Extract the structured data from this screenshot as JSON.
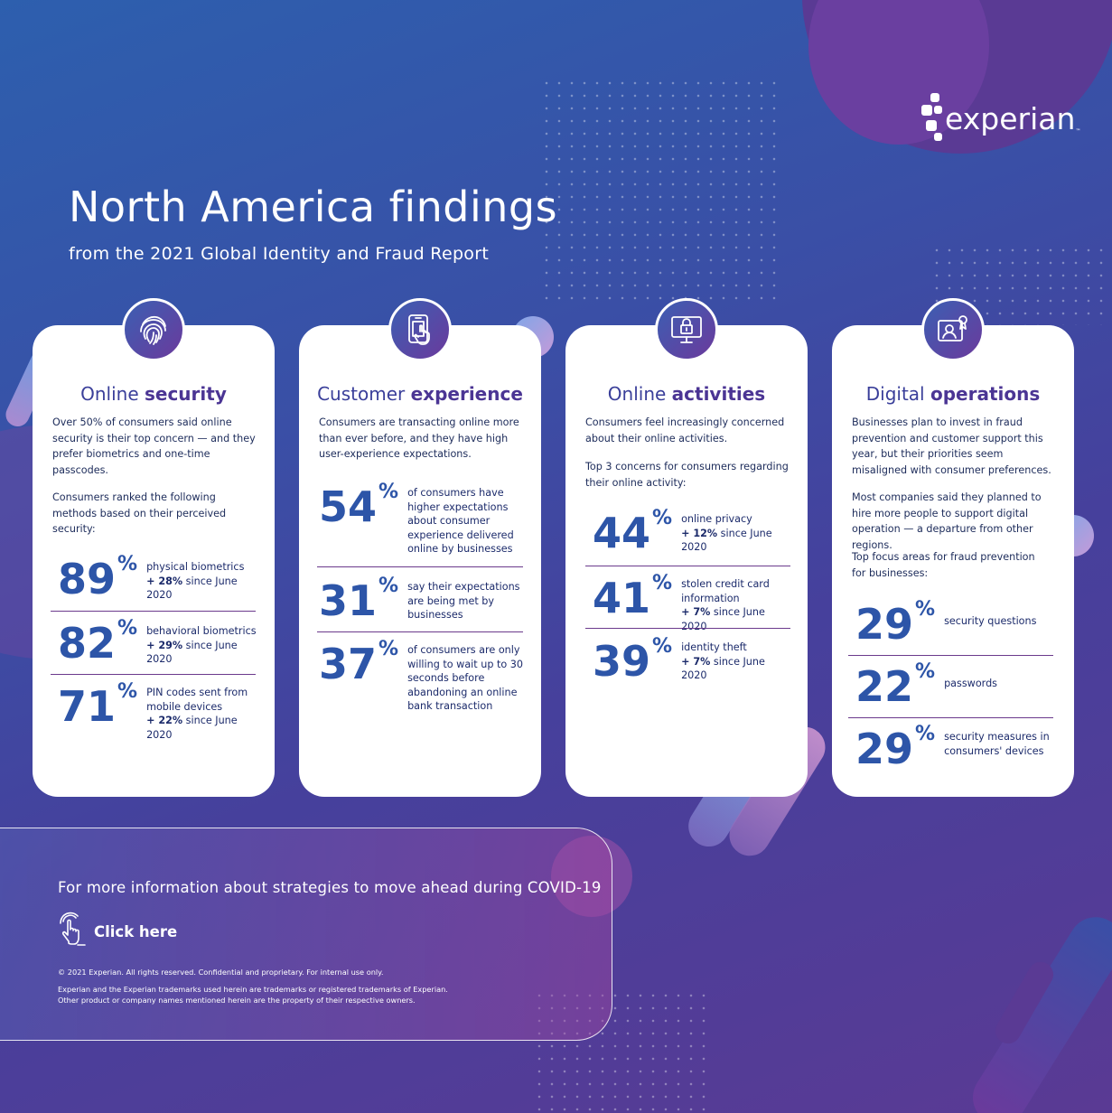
{
  "brand": {
    "name": "experian",
    "tm": "™"
  },
  "header": {
    "title": "North America findings",
    "subtitle": "from the 2021 Global Identity and Fraud Report"
  },
  "cards": [
    {
      "icon": "fingerprint-icon",
      "title_plain": "Online ",
      "title_bold": "security",
      "text1": "Over 50% of consumers said online security is their top concern — and they prefer biometrics and one-time passcodes.",
      "text2": "Consumers ranked the following methods based on their perceived security:",
      "stats": [
        {
          "num": "89",
          "pct": "%",
          "desc": "physical biometrics",
          "change": "+ 28%",
          "since": " since June 2020"
        },
        {
          "num": "82",
          "pct": "%",
          "desc": "behavioral biometrics",
          "change": "+ 29%",
          "since": " since June 2020"
        },
        {
          "num": "71",
          "pct": "%",
          "desc": "PIN codes sent from mobile devices",
          "change": "+ 22%",
          "since": " since June 2020"
        }
      ]
    },
    {
      "icon": "tablet-touch-icon",
      "title_plain": "Customer ",
      "title_bold": "experience",
      "text1": "Consumers are transacting online more than ever before, and they have high user-experience expectations.",
      "stats": [
        {
          "num": "54",
          "pct": "%",
          "desc": "of consumers have higher expectations about consumer experience delivered online by businesses"
        },
        {
          "num": "31",
          "pct": "%",
          "desc": "say their expectations are being met by businesses"
        },
        {
          "num": "37",
          "pct": "%",
          "desc": "of consumers are only willing to wait up to 30 seconds before abandoning an online bank transaction"
        }
      ]
    },
    {
      "icon": "monitor-lock-icon",
      "title_plain": "Online ",
      "title_bold": "activities",
      "text1": "Consumers feel increasingly concerned about their online activities.",
      "text2": "Top 3 concerns for consumers regarding their online activity:",
      "stats": [
        {
          "num": "44",
          "pct": "%",
          "desc": "online privacy",
          "change": "+ 12%",
          "since": " since June 2020"
        },
        {
          "num": "41",
          "pct": "%",
          "desc": "stolen credit card information",
          "change": "+ 7%",
          "since": " since June 2020"
        },
        {
          "num": "39",
          "pct": "%",
          "desc": "identity theft",
          "change": "+ 7%",
          "since": " since June 2020"
        }
      ]
    },
    {
      "icon": "id-badge-icon",
      "title_plain": "Digital ",
      "title_bold": "operations",
      "text1": "Businesses plan to invest in fraud prevention and customer support this year, but their priorities seem misaligned with consumer preferences.",
      "text2": "Most companies said they planned to hire more people to support digital operation — a departure from other regions.",
      "text3": "Top focus areas for fraud prevention for businesses:",
      "stats": [
        {
          "num": "29",
          "pct": "%",
          "desc": "security questions"
        },
        {
          "num": "22",
          "pct": "%",
          "desc": "passwords"
        },
        {
          "num": "29",
          "pct": "%",
          "desc": "security measures in consumers' devices"
        }
      ]
    }
  ],
  "footer": {
    "info": "For more information about strategies to move ahead during COVID-19",
    "click_label": "Click here",
    "copyright": "© 2021 Experian. All rights reserved. Confidential and proprietary. For internal use only.",
    "trademark1": "Experian and the Experian trademarks used herein are trademarks or registered trademarks of Experian.",
    "trademark2": "Other product or company names mentioned herein are the property of their respective owners."
  }
}
